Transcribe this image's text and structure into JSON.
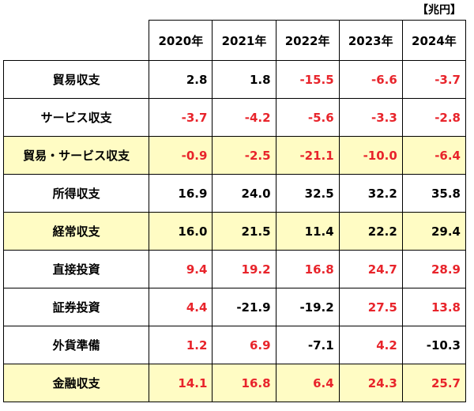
{
  "unit": "【兆円】",
  "years": [
    "2020年",
    "2021年",
    "2022年",
    "2023年",
    "2024年"
  ],
  "rows": [
    {
      "label": "貿易収支",
      "values": [
        "2.8",
        "1.8",
        "-15.5",
        "-6.6",
        "-3.7"
      ]
    },
    {
      "label": "サービス収支",
      "values": [
        "-3.7",
        "-4.2",
        "-5.6",
        "-3.3",
        "-2.8"
      ]
    },
    {
      "label": "貿易・サービス収支",
      "values": [
        "-0.9",
        "-2.5",
        "-21.1",
        "-10.0",
        "-6.4"
      ]
    },
    {
      "label": "所得収支",
      "values": [
        "16.9",
        "24.0",
        "32.5",
        "32.2",
        "35.8"
      ]
    },
    {
      "label": "経常収支",
      "values": [
        "16.0",
        "21.5",
        "11.4",
        "22.2",
        "29.4"
      ]
    },
    {
      "label": "直接投資",
      "values": [
        "9.4",
        "19.2",
        "16.8",
        "24.7",
        "28.9"
      ]
    },
    {
      "label": "証券投資",
      "values": [
        "4.4",
        "-21.9",
        "-19.2",
        "27.5",
        "13.8"
      ]
    },
    {
      "label": "外貨準備",
      "values": [
        "1.2",
        "6.9",
        "-7.1",
        "4.2",
        "-10.3"
      ]
    },
    {
      "label": "金融収支",
      "values": [
        "14.1",
        "16.8",
        "6.4",
        "24.3",
        "25.7"
      ]
    }
  ],
  "colors": {
    "negative_text": "#e8242b",
    "highlight_row": "#fffcc4",
    "border": "#000000"
  }
}
